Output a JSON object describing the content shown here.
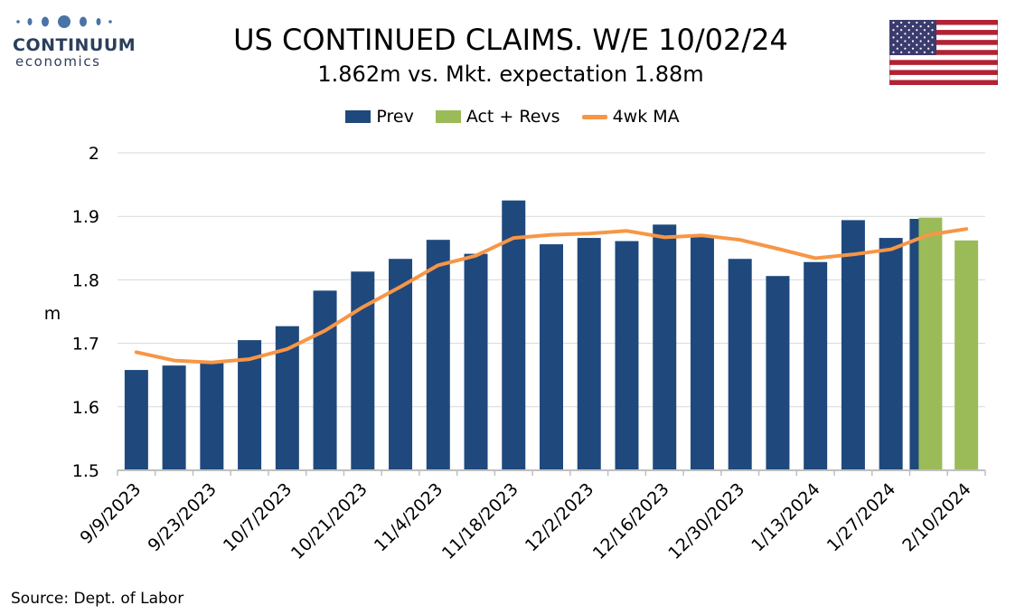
{
  "logo": {
    "brand": "CONTINUUM",
    "sub": "economics"
  },
  "colors": {
    "prev": "#1f497d",
    "act": "#9bbb59",
    "ma": "#f79646",
    "grid": "#d9d9d9",
    "axis": "#bfbfbf"
  },
  "icons": {
    "flag": "us-flag-icon"
  },
  "source": "Source: Dept. of Labor",
  "chart_data": {
    "type": "bar",
    "title": "US CONTINUED CLAIMS. W/E 10/02/24",
    "subtitle": "1.862m vs. Mkt. expectation 1.88m",
    "ylabel": "m",
    "ylim": [
      1.5,
      2.0
    ],
    "yticks": [
      "1.5",
      "1.6",
      "1.7",
      "1.8",
      "1.9",
      "2"
    ],
    "grid": true,
    "legend_position": "top",
    "x_tick_labels": [
      "9/9/2023",
      "9/23/2023",
      "10/7/2023",
      "10/21/2023",
      "11/4/2023",
      "11/18/2023",
      "12/2/2023",
      "12/16/2023",
      "12/30/2023",
      "1/13/2024",
      "1/27/2024",
      "2/10/2024"
    ],
    "categories": [
      "9/9/2023",
      "9/16/2023",
      "9/23/2023",
      "9/30/2023",
      "10/7/2023",
      "10/14/2023",
      "10/21/2023",
      "10/28/2023",
      "11/4/2023",
      "11/11/2023",
      "11/18/2023",
      "11/25/2023",
      "12/2/2023",
      "12/9/2023",
      "12/16/2023",
      "12/23/2023",
      "12/30/2023",
      "1/6/2024",
      "1/13/2024",
      "1/20/2024",
      "1/27/2024",
      "2/3/2024",
      "2/10/2024"
    ],
    "series": [
      {
        "name": "Prev",
        "type": "bar",
        "values": [
          1.658,
          1.665,
          1.67,
          1.705,
          1.727,
          1.783,
          1.813,
          1.833,
          1.863,
          1.841,
          1.925,
          1.856,
          1.866,
          1.861,
          1.887,
          1.869,
          1.833,
          1.806,
          1.828,
          1.894,
          1.866,
          1.896,
          null
        ]
      },
      {
        "name": "Act + Revs",
        "type": "bar",
        "values": [
          null,
          null,
          null,
          null,
          null,
          null,
          null,
          null,
          null,
          null,
          null,
          null,
          null,
          null,
          null,
          null,
          null,
          null,
          null,
          null,
          null,
          1.898,
          1.862
        ]
      },
      {
        "name": "4wk MA",
        "type": "line",
        "values": [
          1.686,
          1.673,
          1.67,
          1.675,
          1.691,
          1.72,
          1.757,
          1.789,
          1.823,
          1.838,
          1.866,
          1.871,
          1.873,
          1.877,
          1.867,
          1.87,
          1.863,
          1.849,
          1.834,
          1.84,
          1.848,
          1.871,
          1.88
        ]
      }
    ]
  }
}
